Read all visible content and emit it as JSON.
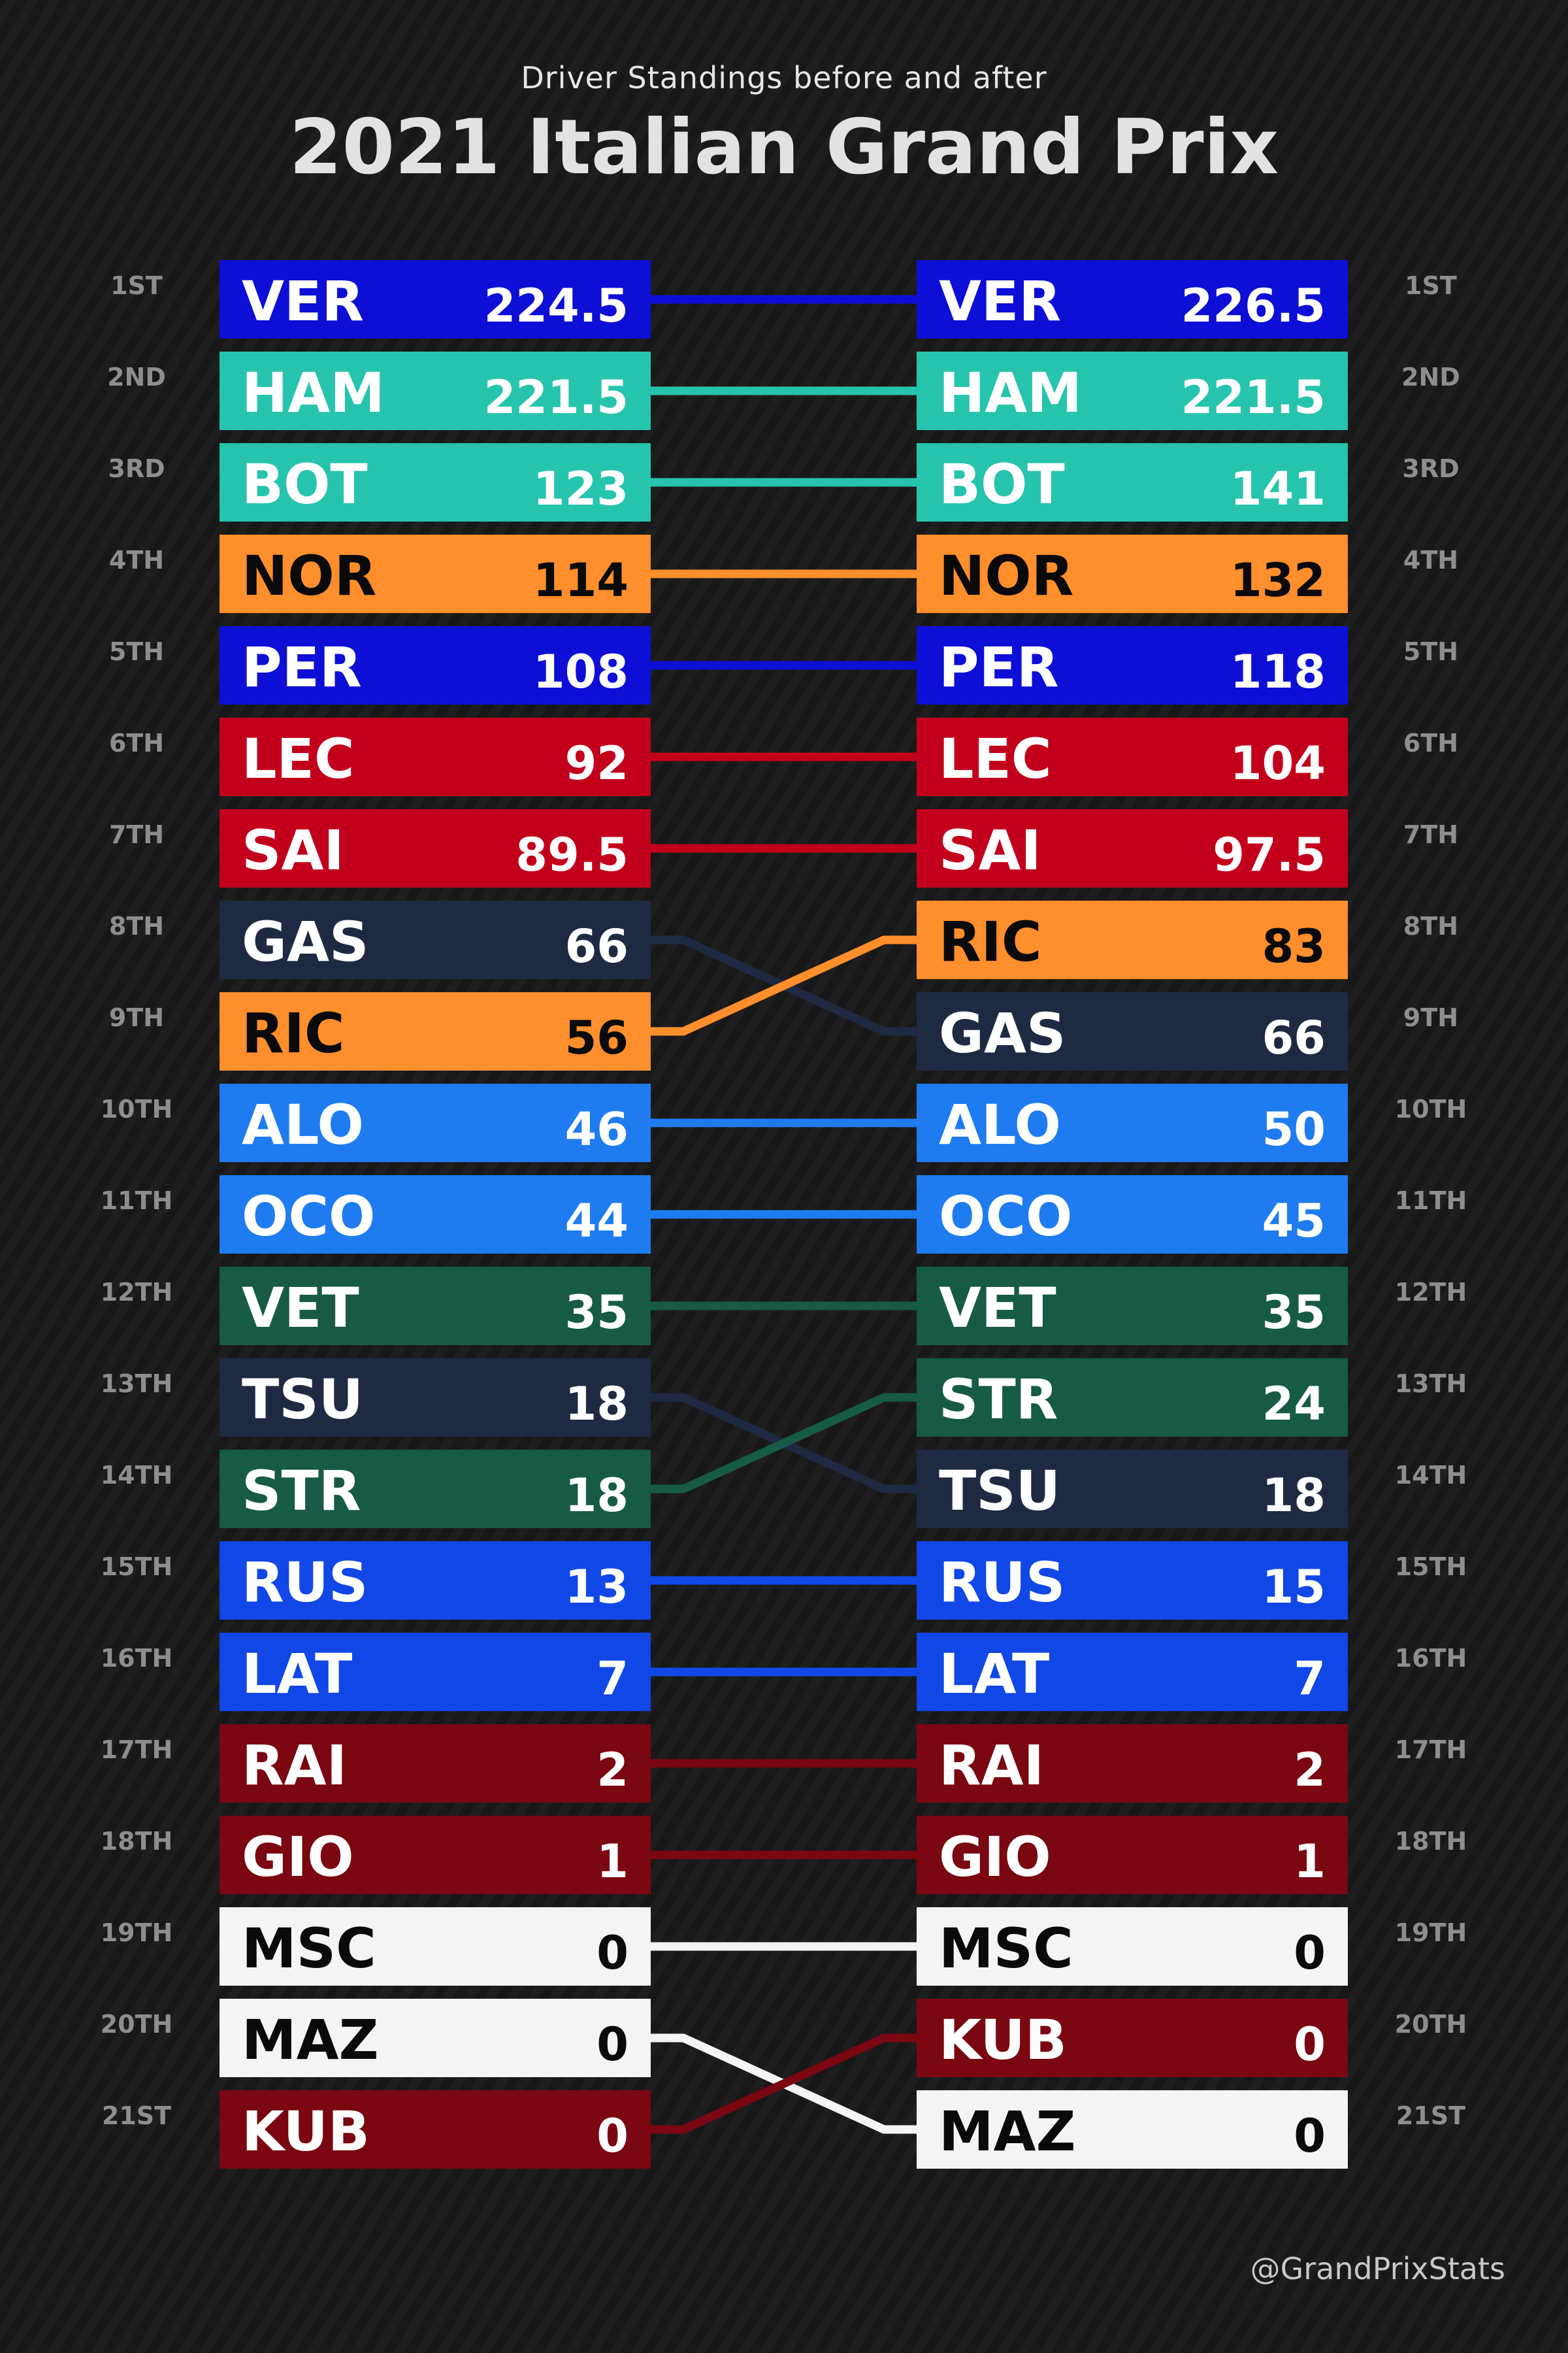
{
  "header": {
    "subtitle": "Driver Standings before and after",
    "title": "2021 Italian Grand Prix"
  },
  "footer": {
    "credit": "@GrandPrixStats"
  },
  "team_colors": {
    "redbull": "#0d0fd6",
    "mercedes": "#27c4ad",
    "mclaren": "#ff8e2c",
    "ferrari": "#c3001c",
    "alphatauri": "#1e2a42",
    "alpine": "#1e7cf0",
    "astonmartin": "#175a48",
    "williams": "#1047e6",
    "alfaromeo": "#7a0711",
    "haas": "#f4f4f4"
  },
  "chart_data": {
    "type": "table",
    "rank_labels": [
      "1ST",
      "2ND",
      "3RD",
      "4TH",
      "5TH",
      "6TH",
      "7TH",
      "8TH",
      "9TH",
      "10TH",
      "11TH",
      "12TH",
      "13TH",
      "14TH",
      "15TH",
      "16TH",
      "17TH",
      "18TH",
      "19TH",
      "20TH",
      "21ST"
    ],
    "before": [
      {
        "code": "VER",
        "points": "224.5",
        "team": "redbull"
      },
      {
        "code": "HAM",
        "points": "221.5",
        "team": "mercedes"
      },
      {
        "code": "BOT",
        "points": "123",
        "team": "mercedes"
      },
      {
        "code": "NOR",
        "points": "114",
        "team": "mclaren"
      },
      {
        "code": "PER",
        "points": "108",
        "team": "redbull"
      },
      {
        "code": "LEC",
        "points": "92",
        "team": "ferrari"
      },
      {
        "code": "SAI",
        "points": "89.5",
        "team": "ferrari"
      },
      {
        "code": "GAS",
        "points": "66",
        "team": "alphatauri"
      },
      {
        "code": "RIC",
        "points": "56",
        "team": "mclaren"
      },
      {
        "code": "ALO",
        "points": "46",
        "team": "alpine"
      },
      {
        "code": "OCO",
        "points": "44",
        "team": "alpine"
      },
      {
        "code": "VET",
        "points": "35",
        "team": "astonmartin"
      },
      {
        "code": "TSU",
        "points": "18",
        "team": "alphatauri"
      },
      {
        "code": "STR",
        "points": "18",
        "team": "astonmartin"
      },
      {
        "code": "RUS",
        "points": "13",
        "team": "williams"
      },
      {
        "code": "LAT",
        "points": "7",
        "team": "williams"
      },
      {
        "code": "RAI",
        "points": "2",
        "team": "alfaromeo"
      },
      {
        "code": "GIO",
        "points": "1",
        "team": "alfaromeo"
      },
      {
        "code": "MSC",
        "points": "0",
        "team": "haas"
      },
      {
        "code": "MAZ",
        "points": "0",
        "team": "haas"
      },
      {
        "code": "KUB",
        "points": "0",
        "team": "alfaromeo"
      }
    ],
    "after": [
      {
        "code": "VER",
        "points": "226.5",
        "team": "redbull"
      },
      {
        "code": "HAM",
        "points": "221.5",
        "team": "mercedes"
      },
      {
        "code": "BOT",
        "points": "141",
        "team": "mercedes"
      },
      {
        "code": "NOR",
        "points": "132",
        "team": "mclaren"
      },
      {
        "code": "PER",
        "points": "118",
        "team": "redbull"
      },
      {
        "code": "LEC",
        "points": "104",
        "team": "ferrari"
      },
      {
        "code": "SAI",
        "points": "97.5",
        "team": "ferrari"
      },
      {
        "code": "RIC",
        "points": "83",
        "team": "mclaren"
      },
      {
        "code": "GAS",
        "points": "66",
        "team": "alphatauri"
      },
      {
        "code": "ALO",
        "points": "50",
        "team": "alpine"
      },
      {
        "code": "OCO",
        "points": "45",
        "team": "alpine"
      },
      {
        "code": "VET",
        "points": "35",
        "team": "astonmartin"
      },
      {
        "code": "STR",
        "points": "24",
        "team": "astonmartin"
      },
      {
        "code": "TSU",
        "points": "18",
        "team": "alphatauri"
      },
      {
        "code": "RUS",
        "points": "15",
        "team": "williams"
      },
      {
        "code": "LAT",
        "points": "7",
        "team": "williams"
      },
      {
        "code": "RAI",
        "points": "2",
        "team": "alfaromeo"
      },
      {
        "code": "GIO",
        "points": "1",
        "team": "alfaromeo"
      },
      {
        "code": "MSC",
        "points": "0",
        "team": "haas"
      },
      {
        "code": "KUB",
        "points": "0",
        "team": "alfaromeo"
      },
      {
        "code": "MAZ",
        "points": "0",
        "team": "haas"
      }
    ]
  }
}
